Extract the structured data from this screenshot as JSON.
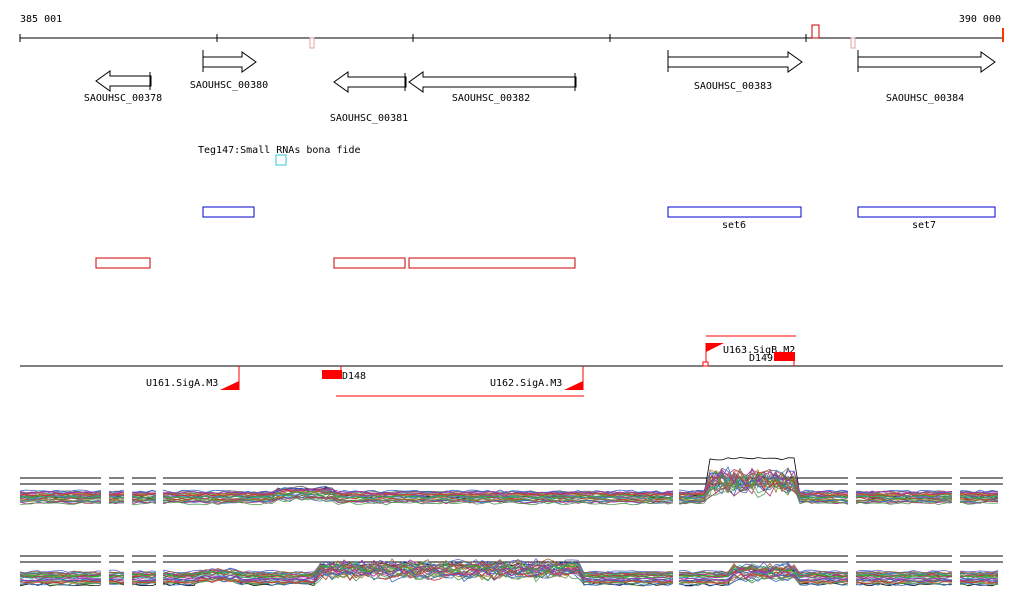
{
  "ruler": {
    "start_label": "385 001",
    "end_label": "390 000"
  },
  "genes": [
    {
      "id": "SAOUHSC_00378",
      "strand": "-"
    },
    {
      "id": "SAOUHSC_00380",
      "strand": "+"
    },
    {
      "id": "SAOUHSC_00381",
      "strand": "-"
    },
    {
      "id": "SAOUHSC_00382",
      "strand": "-"
    },
    {
      "id": "SAOUHSC_00383",
      "strand": "+"
    },
    {
      "id": "SAOUHSC_00384",
      "strand": "+"
    }
  ],
  "srna_label": "Teg147:Small RNAs bona fide",
  "sets": [
    {
      "label": "set6"
    },
    {
      "label": "set7"
    }
  ],
  "promoters": [
    {
      "label": "U161.SigA.M3"
    },
    {
      "label": "U162.SigA.M3"
    },
    {
      "label": "U163.SigB.M2"
    }
  ],
  "terminators": [
    {
      "label": "D148"
    },
    {
      "label": "D149"
    }
  ],
  "colors": {
    "ruler": "#000000",
    "gene_outline": "#000000",
    "srna": "#33cccc",
    "set_box": "#0000cc",
    "red_box": "#cc0000",
    "promoter": "#ff0000",
    "terminator": "#ff0000",
    "guide_lines": "#000000",
    "expression_palette": [
      "#cc3333",
      "#3366cc",
      "#33aa33",
      "#aa33aa",
      "#cc8833",
      "#888833",
      "#33aaaa",
      "#aa3366",
      "#6666cc",
      "#559955",
      "#996633",
      "#666666"
    ]
  }
}
